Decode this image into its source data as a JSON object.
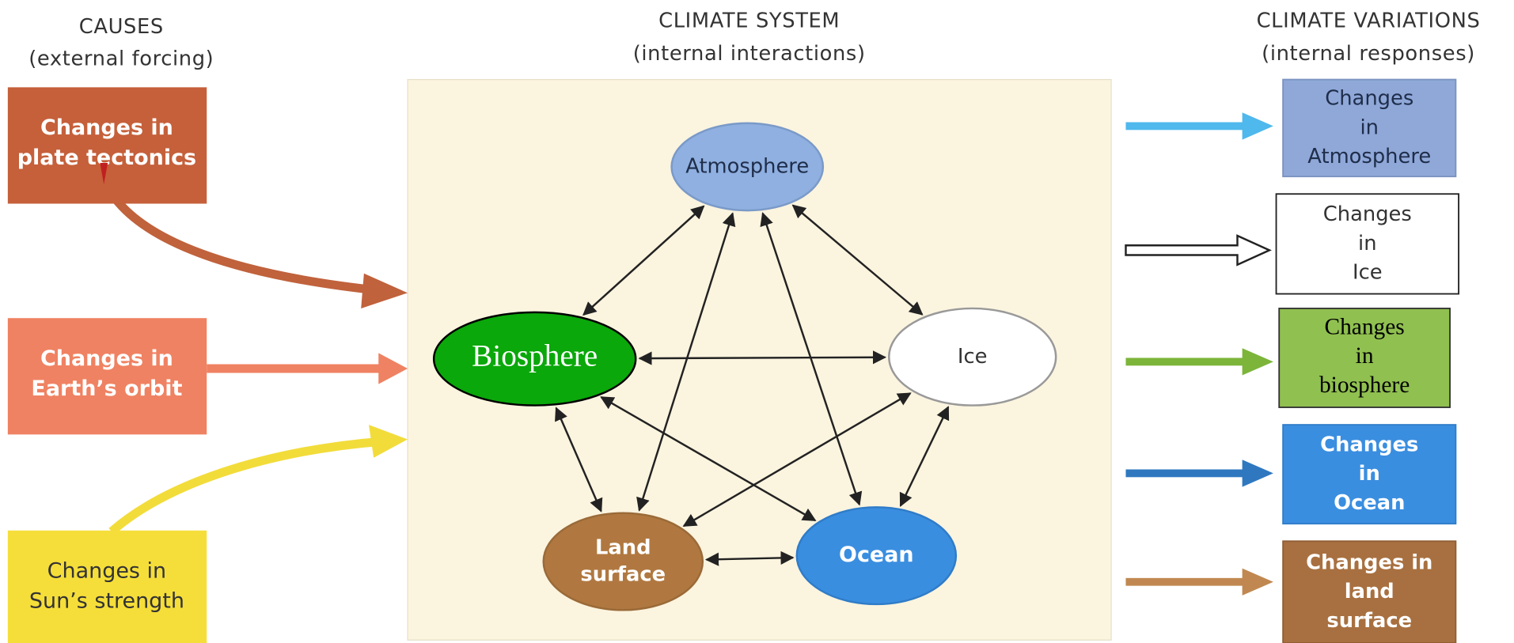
{
  "header": {
    "causes": {
      "title": "CAUSES",
      "subtitle": "(external forcing)"
    },
    "system": {
      "title": "CLIMATE SYSTEM",
      "subtitle": "(internal interactions)"
    },
    "variations": {
      "title": "CLIMATE VARIATIONS",
      "subtitle": "(internal responses)"
    }
  },
  "causes": [
    {
      "lines": [
        "Changes in",
        "plate tectonics"
      ]
    },
    {
      "lines": [
        "Changes in",
        "Earth’s orbit"
      ]
    },
    {
      "lines": [
        "Changes in",
        "Sun’s strength"
      ]
    }
  ],
  "nodes": [
    {
      "lines": [
        "Atmosphere"
      ]
    },
    {
      "lines": [
        "Biosphere"
      ]
    },
    {
      "lines": [
        "Ice"
      ]
    },
    {
      "lines": [
        "Land",
        "surface"
      ]
    },
    {
      "lines": [
        "Ocean"
      ]
    }
  ],
  "responses": [
    {
      "lines": [
        "Changes",
        "in",
        "Atmosphere"
      ]
    },
    {
      "lines": [
        "Changes",
        "in",
        "Ice"
      ]
    },
    {
      "lines": [
        "Changes",
        "in",
        "biosphere"
      ]
    },
    {
      "lines": [
        "Changes",
        "in",
        "Ocean"
      ]
    },
    {
      "lines": [
        "Changes in",
        "land",
        "surface"
      ]
    }
  ]
}
